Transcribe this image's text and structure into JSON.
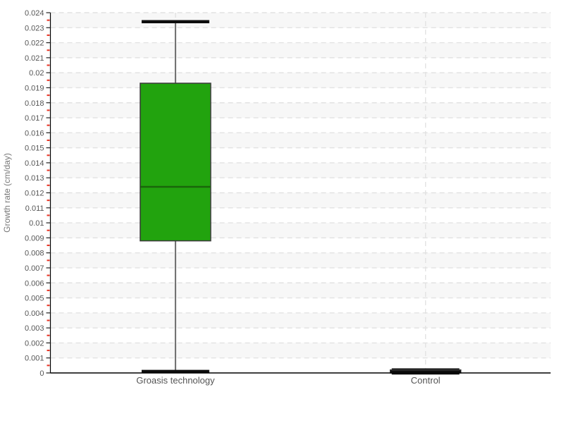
{
  "chart_data": {
    "type": "boxplot",
    "title": "",
    "xlabel": "",
    "ylabel": "Growth rate (cm/day)",
    "ylim": [
      0,
      0.024
    ],
    "ytick_step": 0.001,
    "minor_tick_step": 0.0005,
    "ytick_labels": [
      "0",
      "0.001",
      "0.002",
      "0.003",
      "0.004",
      "0.005",
      "0.006",
      "0.007",
      "0.008",
      "0.009",
      "0.01",
      "0.011",
      "0.012",
      "0.013",
      "0.014",
      "0.015",
      "0.016",
      "0.017",
      "0.018",
      "0.019",
      "0.02",
      "0.021",
      "0.022",
      "0.023",
      "0.024"
    ],
    "categories": [
      "Groasis technology",
      "Control"
    ],
    "series": [
      {
        "name": "Groasis technology",
        "min": 0.0001,
        "q1": 0.0088,
        "median": 0.0124,
        "q3": 0.0193,
        "max": 0.0234,
        "box_color": "#22a30e",
        "median_color": "#1a660b"
      },
      {
        "name": "Control",
        "min": 0,
        "q1": 0,
        "median": 0.0001,
        "q3": 0.0002,
        "max": 0.0002,
        "box_color": "#0d0d0d",
        "median_color": "#0d0d0d"
      }
    ],
    "grid": {
      "horizontal_dashed": true,
      "vertical_dashed_at_category_centers": true,
      "alternating_row_bands": true
    },
    "colors": {
      "background": "#ffffff",
      "band": "#f7f7f7",
      "grid": "#e2e2e2",
      "axis": "#000000",
      "major_tick": "#222222",
      "minor_tick": "#e93323",
      "tick_text": "#555555",
      "category_text": "#555555",
      "axis_title_text": "#777777",
      "whisker": "#6b6b6b",
      "cap": "#0d0d0d",
      "box_border": "#3a3a3a"
    }
  }
}
